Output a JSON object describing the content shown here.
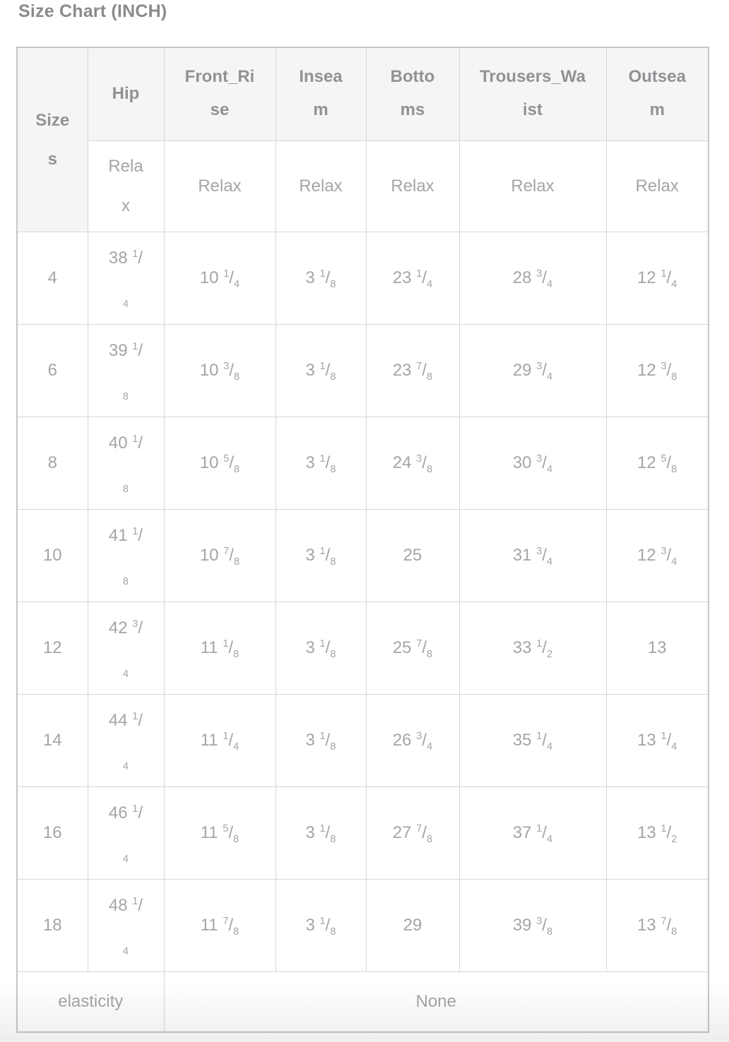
{
  "title": "Size Chart (INCH)",
  "colors": {
    "title_text": "#8b8b8b",
    "header_text": "#929296",
    "body_text": "#a5a5a9",
    "header_background": "#f5f5f6",
    "border": "#c6c6c8"
  },
  "table": {
    "columns": [
      {
        "key": "sizes",
        "label": "Sizes",
        "sub": null
      },
      {
        "key": "hip",
        "label": "Hip",
        "sub": "Relax"
      },
      {
        "key": "front_rise",
        "label": "Front_Rise",
        "sub": "Relax"
      },
      {
        "key": "inseam",
        "label": "Inseam",
        "sub": "Relax"
      },
      {
        "key": "bottoms",
        "label": "Bottoms",
        "sub": "Relax"
      },
      {
        "key": "trousers_waist",
        "label": "Trousers_Waist",
        "sub": "Relax"
      },
      {
        "key": "outseam",
        "label": "Outseam",
        "sub": "Relax"
      }
    ],
    "rows": [
      {
        "size": "4",
        "hip": "38 1/4",
        "front_rise": "10 1/4",
        "inseam": "3 1/8",
        "bottoms": "23 1/4",
        "trousers_waist": "28 3/4",
        "outseam": "12 1/4"
      },
      {
        "size": "6",
        "hip": "39 1/8",
        "front_rise": "10 3/8",
        "inseam": "3 1/8",
        "bottoms": "23 7/8",
        "trousers_waist": "29 3/4",
        "outseam": "12 3/8"
      },
      {
        "size": "8",
        "hip": "40 1/8",
        "front_rise": "10 5/8",
        "inseam": "3 1/8",
        "bottoms": "24 3/8",
        "trousers_waist": "30 3/4",
        "outseam": "12 5/8"
      },
      {
        "size": "10",
        "hip": "41 1/8",
        "front_rise": "10 7/8",
        "inseam": "3 1/8",
        "bottoms": "25",
        "trousers_waist": "31 3/4",
        "outseam": "12 3/4"
      },
      {
        "size": "12",
        "hip": "42 3/4",
        "front_rise": "11 1/8",
        "inseam": "3 1/8",
        "bottoms": "25 7/8",
        "trousers_waist": "33 1/2",
        "outseam": "13"
      },
      {
        "size": "14",
        "hip": "44 1/4",
        "front_rise": "11 1/4",
        "inseam": "3 1/8",
        "bottoms": "26 3/4",
        "trousers_waist": "35 1/4",
        "outseam": "13 1/4"
      },
      {
        "size": "16",
        "hip": "46 1/4",
        "front_rise": "11 5/8",
        "inseam": "3 1/8",
        "bottoms": "27 7/8",
        "trousers_waist": "37 1/4",
        "outseam": "13 1/2"
      },
      {
        "size": "18",
        "hip": "48 1/4",
        "front_rise": "11 7/8",
        "inseam": "3 1/8",
        "bottoms": "29",
        "trousers_waist": "39 3/8",
        "outseam": "13 7/8"
      }
    ],
    "footer": {
      "label": "elasticity",
      "value": "None"
    }
  }
}
